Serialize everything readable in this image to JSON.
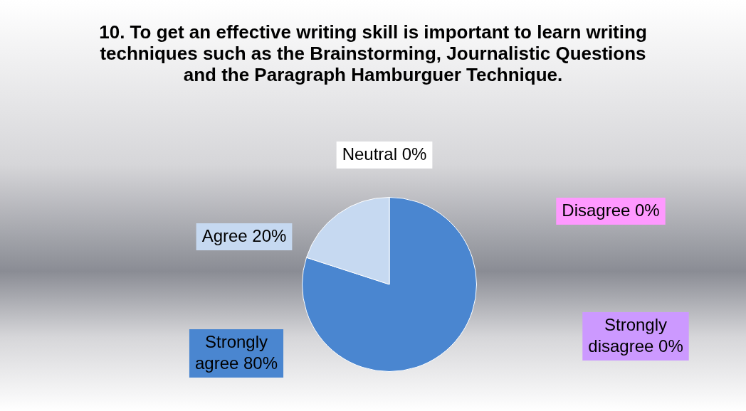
{
  "chart_data": {
    "type": "pie",
    "title": "10. To get an effective writing skill is important  to learn writing techniques such as the Brainstorming, Journalistic Questions and the Paragraph Hamburguer  Technique.",
    "categories": [
      "Strongly agree",
      "Agree",
      "Neutral",
      "Disagree",
      "Strongly disagree"
    ],
    "values": [
      80,
      20,
      0,
      0,
      0
    ],
    "colors": [
      "#4a86d0",
      "#c6d9f1",
      "#ffffff",
      "#ff99ff",
      "#cc99ff"
    ],
    "value_labels": [
      "80%",
      "20%",
      "0%",
      "0%",
      "0%"
    ],
    "legend": false
  }
}
